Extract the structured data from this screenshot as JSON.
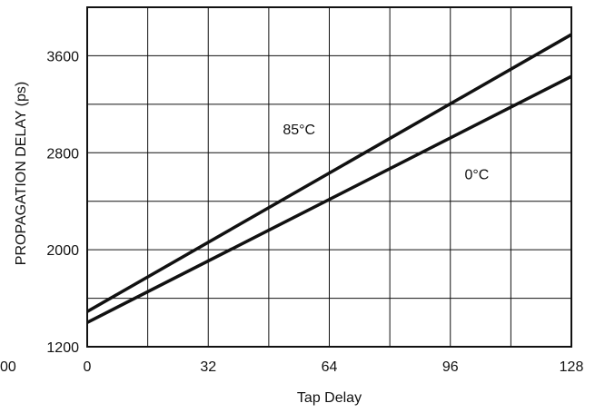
{
  "chart_data": {
    "type": "line",
    "xlabel": "Tap Delay",
    "ylabel": "PROPAGATION DELAY (ps)",
    "xlim": [
      0,
      128
    ],
    "ylim": [
      1200,
      4000
    ],
    "x_ticks": [
      0,
      32,
      64,
      96,
      128
    ],
    "y_ticks": [
      1200,
      2000,
      2800,
      3600
    ],
    "cut_off_left_label": "00",
    "grid": true,
    "grid_x_step": 16,
    "grid_y_step": 400,
    "series": [
      {
        "name": "85°C",
        "x": [
          0,
          128
        ],
        "y": [
          1490,
          3775
        ]
      },
      {
        "name": "0°C",
        "x": [
          0,
          128
        ],
        "y": [
          1400,
          3430
        ]
      }
    ],
    "annotations": [
      {
        "text": "85°C",
        "x": 56,
        "y": 2990,
        "series": 0
      },
      {
        "text": "0°C",
        "x": 103,
        "y": 2620,
        "series": 1
      }
    ],
    "colors": {
      "line": "#111111",
      "grid": "#111111",
      "background": "#ffffff"
    }
  }
}
